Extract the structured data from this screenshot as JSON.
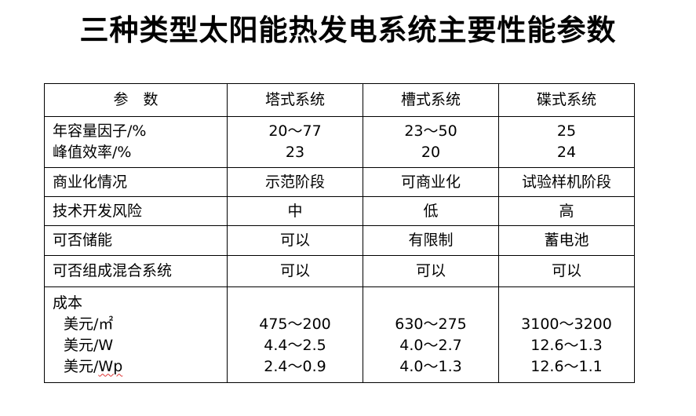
{
  "title": "三种类型太阳能热发电系统主要性能参数",
  "table": {
    "headers": [
      "参　数",
      "塔式系统",
      "槽式系统",
      "碟式系统"
    ],
    "rows": [
      {
        "param": [
          "年容量因子/%",
          "峰值效率/%"
        ],
        "tower": [
          "20～77",
          "23"
        ],
        "trough": [
          "23～50",
          "20"
        ],
        "dish": [
          "25",
          "24"
        ]
      },
      {
        "param": [
          "商业化情况"
        ],
        "tower": [
          "示范阶段"
        ],
        "trough": [
          "可商业化"
        ],
        "dish": [
          "试验样机阶段"
        ]
      },
      {
        "param": [
          "技术开发风险"
        ],
        "tower": [
          "中"
        ],
        "trough": [
          "低"
        ],
        "dish": [
          "高"
        ]
      },
      {
        "param": [
          "可否储能"
        ],
        "tower": [
          "可以"
        ],
        "trough": [
          "有限制"
        ],
        "dish": [
          "蓄电池"
        ]
      },
      {
        "param": [
          "可否组成混合系统"
        ],
        "tower": [
          "可以"
        ],
        "trough": [
          "可以"
        ],
        "dish": [
          "可以"
        ]
      },
      {
        "param": [
          "成本",
          "美元/㎡",
          "美元/W",
          "美元/Wp"
        ],
        "tower": [
          "",
          "475～200",
          "4.4～2.5",
          "2.4～0.9"
        ],
        "trough": [
          "",
          "630～275",
          "4.0～2.7",
          "4.0～1.3"
        ],
        "dish": [
          "",
          "3100～3200",
          "12.6～1.3",
          "12.6～1.1"
        ]
      }
    ]
  }
}
